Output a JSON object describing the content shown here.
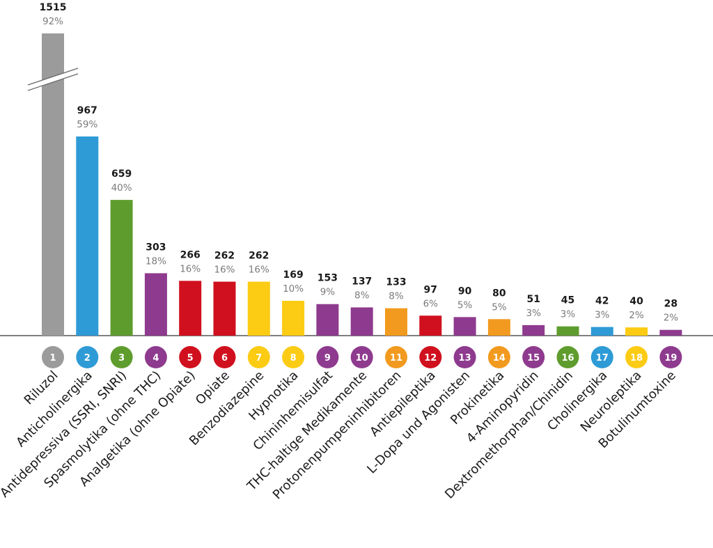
{
  "chart_data": {
    "type": "bar",
    "categories": [
      "Riluzol",
      "Anticholinergika",
      "Antidepressiva (SSRI, SNRI)",
      "Spasmolytika (ohne THC)",
      "Analgetika (ohne Opiate)",
      "Opiate",
      "Benzodiazepine",
      "Hypnotika",
      "Chininhemisulfat",
      "THC-haltige Medikamente",
      "Protonenpumpeninhibitoren",
      "Antiepileptika",
      "L-Dopa und Agonisten",
      "Prokinetika",
      "4-Aminopyridin",
      "Dextromethorphan/Chinidin",
      "Cholinergika",
      "Neuroleptika",
      "Botulinumtoxine"
    ],
    "values": [
      1515,
      967,
      659,
      303,
      266,
      262,
      262,
      169,
      153,
      137,
      133,
      97,
      90,
      80,
      51,
      45,
      42,
      40,
      28
    ],
    "value_labels": [
      "1515",
      "967",
      "659",
      "303",
      "266",
      "262",
      "262",
      "169",
      "153",
      "137",
      "133",
      "97",
      "90",
      "80",
      "51",
      "45",
      "42",
      "40",
      "28"
    ],
    "percent_labels": [
      "92%",
      "59%",
      "40%",
      "18%",
      "16%",
      "16%",
      "16%",
      "10%",
      "9%",
      "8%",
      "8%",
      "6%",
      "5%",
      "5%",
      "3%",
      "3%",
      "3%",
      "2%",
      "2%"
    ],
    "ranks": [
      "1",
      "2",
      "3",
      "4",
      "5",
      "6",
      "7",
      "8",
      "9",
      "10",
      "11",
      "12",
      "13",
      "14",
      "15",
      "16",
      "17",
      "18",
      "19"
    ],
    "colors": [
      "#9b9b9b",
      "#2e9bd6",
      "#5f9c2e",
      "#8e3a8e",
      "#d0101e",
      "#d0101e",
      "#fccb14",
      "#fccb14",
      "#8e3a8e",
      "#8e3a8e",
      "#f29a1f",
      "#d0101e",
      "#8e3a8e",
      "#f29a1f",
      "#8e3a8e",
      "#5f9c2e",
      "#2e9bd6",
      "#fccb14",
      "#8e3a8e"
    ],
    "axis_break": {
      "category": "Riluzol",
      "displayed_as": "truncated with break mark"
    },
    "ylim": [
      0,
      1000
    ],
    "grid": false,
    "legend": "none"
  }
}
